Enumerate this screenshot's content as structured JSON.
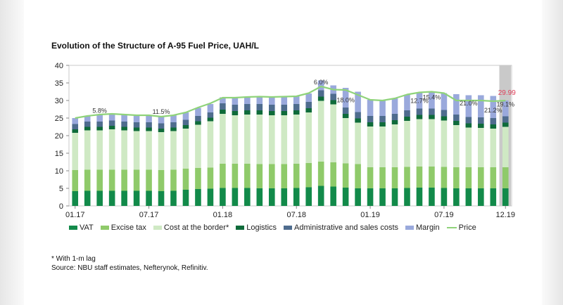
{
  "title": "Evolution of the Structure of A-95 Fuel Price, UAH/L",
  "footnote": "* With 1-m lag",
  "source": "Source: NBU staff estimates, Nefterynok, Refinitiv.",
  "colors": {
    "vat": "#128a4a",
    "excise": "#8fca6a",
    "border": "#cfe9c4",
    "logistics": "#0f6b3a",
    "admin": "#4f6c8e",
    "margin": "#9aa9dc",
    "price": "#8fd37a",
    "highlight": "#c9c9c9",
    "label_red": "#e0405a"
  },
  "chart_data": {
    "type": "bar",
    "stacked": true,
    "ylim": [
      0,
      40
    ],
    "yticks": [
      "0",
      "5",
      "10",
      "15",
      "20",
      "25",
      "30",
      "35",
      "40"
    ],
    "categories": [
      "01.17",
      "02.17",
      "03.17",
      "04.17",
      "05.17",
      "06.17",
      "07.17",
      "08.17",
      "09.17",
      "10.17",
      "11.17",
      "12.17",
      "01.18",
      "02.18",
      "03.18",
      "04.18",
      "05.18",
      "06.18",
      "07.18",
      "08.18",
      "09.18",
      "10.18",
      "11.18",
      "12.18",
      "01.19",
      "02.19",
      "03.19",
      "04.19",
      "05.19",
      "06.19",
      "07.19",
      "08.19",
      "09.19",
      "10.19",
      "11.19",
      "12.19"
    ],
    "xtick_labels": [
      "01.17",
      "07.17",
      "01.18",
      "07.18",
      "01.19",
      "07.19",
      "12.19"
    ],
    "legend": [
      {
        "key": "vat",
        "label": "VAT"
      },
      {
        "key": "excise",
        "label": "Excise tax"
      },
      {
        "key": "border",
        "label": "Cost at the border*"
      },
      {
        "key": "logistics",
        "label": "Logistics"
      },
      {
        "key": "admin",
        "label": "Administrative and sales costs"
      },
      {
        "key": "margin",
        "label": "Margin"
      },
      {
        "key": "price",
        "label": "Price"
      }
    ],
    "series": [
      {
        "key": "vat",
        "name": "VAT",
        "values": [
          4.2,
          4.3,
          4.3,
          4.3,
          4.3,
          4.3,
          4.3,
          4.2,
          4.3,
          4.6,
          4.8,
          4.9,
          5.1,
          5.1,
          5.1,
          5.0,
          5.0,
          5.0,
          5.1,
          5.3,
          5.7,
          5.5,
          5.2,
          5.0,
          5.0,
          5.0,
          5.0,
          5.1,
          5.2,
          5.2,
          5.1,
          5.0,
          5.0,
          5.0,
          5.0,
          5.0
        ]
      },
      {
        "key": "excise",
        "name": "Excise tax",
        "values": [
          6.0,
          6.0,
          6.0,
          6.0,
          6.0,
          6.0,
          6.0,
          6.0,
          6.0,
          6.0,
          6.0,
          6.0,
          6.9,
          6.9,
          6.9,
          6.9,
          6.9,
          6.9,
          6.9,
          6.9,
          6.9,
          6.9,
          6.9,
          6.9,
          6.0,
          6.0,
          6.0,
          6.0,
          6.0,
          6.0,
          6.0,
          6.0,
          6.0,
          6.0,
          6.0,
          6.0
        ]
      },
      {
        "key": "border",
        "name": "Cost at the border*",
        "values": [
          10.6,
          11.2,
          11.2,
          11.5,
          11.2,
          11.0,
          11.0,
          10.8,
          11.0,
          11.4,
          12.3,
          13.2,
          14.2,
          13.8,
          14.0,
          14.1,
          13.9,
          13.9,
          14.0,
          14.4,
          17.3,
          16.5,
          12.9,
          11.8,
          11.6,
          11.6,
          12.2,
          13.1,
          13.5,
          13.5,
          13.2,
          12.0,
          11.3,
          11.2,
          11.0,
          11.5
        ]
      },
      {
        "key": "logistics",
        "name": "Logistics",
        "values": [
          1.0,
          1.0,
          1.0,
          1.0,
          1.0,
          1.0,
          1.0,
          1.0,
          1.0,
          1.0,
          1.0,
          1.0,
          1.2,
          1.2,
          1.2,
          1.2,
          1.2,
          1.2,
          1.2,
          1.2,
          1.2,
          1.2,
          1.2,
          1.2,
          1.2,
          1.2,
          1.2,
          1.2,
          1.2,
          1.2,
          1.2,
          1.2,
          1.2,
          1.2,
          1.2,
          1.2
        ]
      },
      {
        "key": "admin",
        "name": "Administrative and sales costs",
        "values": [
          1.5,
          1.5,
          1.5,
          1.5,
          1.5,
          1.5,
          1.5,
          1.5,
          1.5,
          1.5,
          1.5,
          1.5,
          1.8,
          1.8,
          1.8,
          1.8,
          1.8,
          1.8,
          1.8,
          1.8,
          1.8,
          1.8,
          1.8,
          1.8,
          1.8,
          1.8,
          1.8,
          1.8,
          1.8,
          1.8,
          1.8,
          1.8,
          1.8,
          1.8,
          1.8,
          1.8
        ]
      },
      {
        "key": "margin",
        "name": "Margin",
        "values": [
          1.7,
          1.6,
          2.0,
          1.9,
          2.0,
          2.0,
          2.0,
          1.9,
          2.0,
          2.1,
          2.3,
          2.4,
          1.7,
          2.0,
          2.0,
          2.1,
          2.2,
          2.3,
          2.2,
          2.4,
          2.8,
          2.4,
          5.6,
          5.8,
          4.6,
          4.4,
          4.4,
          4.5,
          4.6,
          4.8,
          4.8,
          5.8,
          6.2,
          6.3,
          6.3,
          4.5
        ]
      }
    ],
    "price": [
      25.0,
      25.6,
      26.0,
      26.2,
      26.0,
      25.8,
      25.8,
      25.4,
      25.8,
      26.6,
      28.0,
      29.2,
      30.8,
      30.8,
      31.0,
      31.1,
      31.0,
      31.1,
      31.2,
      32.1,
      34.0,
      33.1,
      33.0,
      31.6,
      30.2,
      30.0,
      30.6,
      31.7,
      32.3,
      32.5,
      32.1,
      30.0,
      30.0,
      30.0,
      29.8,
      29.99
    ],
    "annotations": [
      {
        "category": "03.17",
        "text": "5.8%",
        "y": 26.5
      },
      {
        "category": "08.17",
        "text": "11.5%",
        "y": 26.2
      },
      {
        "category": "09.18",
        "text": "6.0%",
        "y": 34.6
      },
      {
        "category": "11.18",
        "text": "18.0%",
        "y": 29.5
      },
      {
        "category": "05.19",
        "text": "12.7%",
        "y": 29.3
      },
      {
        "category": "06.19",
        "text": "15.4%",
        "y": 30.3
      },
      {
        "category": "09.19",
        "text": "21.0%",
        "y": 28.6
      },
      {
        "category": "11.19",
        "text": "21.2%",
        "y": 26.6
      },
      {
        "category": "12.19",
        "text": "19.1%",
        "y": 28.3
      },
      {
        "category": "12.19",
        "text": "29.99",
        "y": 31.6,
        "highlight": true
      }
    ],
    "highlight_category": "12.19",
    "grid": false
  }
}
